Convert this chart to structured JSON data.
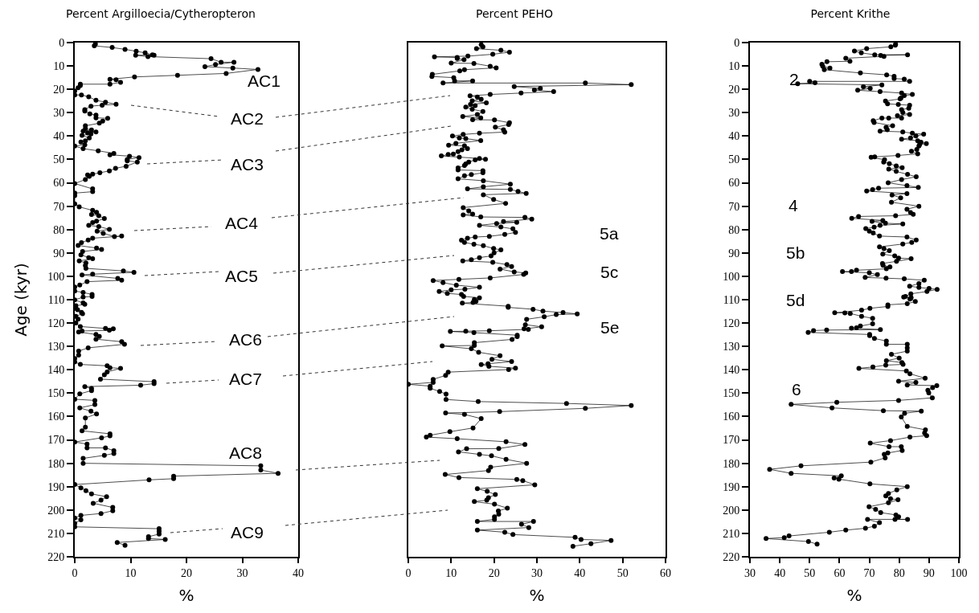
{
  "chart_data": [
    {
      "type": "line",
      "title": "Percent Argilloecia/Cytheropteron",
      "xlabel": "%",
      "ylabel": "Age (kyr)",
      "xlim": [
        0,
        40
      ],
      "xticks": [
        0,
        10,
        20,
        30,
        40
      ],
      "ylim": [
        220,
        0
      ],
      "yticks": [
        0,
        10,
        20,
        30,
        40,
        50,
        60,
        70,
        80,
        90,
        100,
        110,
        120,
        130,
        140,
        150,
        160,
        170,
        180,
        190,
        200,
        210,
        220
      ],
      "marker": "circle",
      "line_style": "solid",
      "series": [
        {
          "color": "#000000",
          "x": [
            3.7,
            3.5,
            6.7,
            9.0,
            11.0,
            12.6,
            13.9,
            14.2,
            10.9,
            13.1,
            24.4,
            26.2,
            28.5,
            25.2,
            23.3,
            28.3,
            32.8,
            27.1,
            18.4,
            10.7,
            6.3,
            7.4,
            8.2,
            6.3,
            1.0,
            1.0,
            0.6,
            0,
            0,
            1.2,
            2.5,
            3.8,
            5.5,
            7.4,
            4.9,
            2.9,
            1.8,
            1.8,
            2.7,
            3.8,
            3.8,
            5.9,
            5.0,
            4.4,
            1.9,
            1.9,
            3.0,
            1.5,
            3.8,
            2.3,
            2.9,
            1.3,
            2.6,
            1.9,
            1.1,
            1.8,
            0,
            1.5,
            4.2,
            7.0,
            6.3,
            9.8,
            11.5,
            9.4,
            9.4,
            11.2,
            9.2,
            7.3,
            6.2,
            4.5,
            3.2,
            2.3,
            2.6,
            1.9,
            0,
            3.2,
            3.2,
            0,
            0,
            0,
            0.8,
            3.2,
            3.9,
            3.0,
            4.3,
            5.3,
            3.9,
            3.2,
            2.5,
            4.3,
            6.2,
            4.0,
            5.1,
            7.1,
            8.4,
            3.2,
            2.4,
            1.2,
            0.6,
            3.9,
            4.8,
            1.4,
            1.1,
            2.5,
            3.2,
            0.8,
            2.0,
            1.9,
            2.0,
            8.7,
            10.6,
            3.2,
            1.3,
            7.7,
            8.4,
            2.2,
            0.9,
            0,
            0,
            1.5,
            3.1,
            3.1,
            1.5,
            0,
            1.5,
            1.8,
            0.2,
            0.2,
            0.5,
            1.2,
            1.4,
            0.2,
            0.6,
            0.2,
            1.0,
            5.5,
            6.9,
            6.2,
            1.3,
            0.7,
            3.8,
            4.4,
            3.8,
            8.4,
            8.9,
            2.4,
            0.7,
            0.7,
            0,
            0,
            1.0,
            5.8,
            6.3,
            8.2,
            5.8,
            5.3,
            4.6,
            14.2,
            14.2,
            11.8,
            1.8,
            3.0,
            3.0,
            0.9,
            0,
            3.6,
            3.6,
            0.9,
            2.9,
            3.9,
            1.9,
            1.9,
            1.3,
            6.3,
            6.3,
            4.8,
            0,
            2.2,
            2.2,
            5.5,
            7.0,
            7.0,
            5.3,
            1.5,
            1.5,
            33.3,
            33.3,
            36.4,
            17.7,
            17.7,
            13.3,
            0,
            1.1,
            2.0,
            3.0,
            5.7,
            4.7,
            3.3,
            6.8,
            6.8,
            4.7,
            1.1,
            0,
            1.1,
            0,
            0,
            15.1,
            15.1,
            15.1,
            13.2,
            13.2,
            16.2,
            7.6,
            9.0
          ],
          "values": [
            0.6,
            1.4,
            2.1,
            2.9,
            3.7,
            4.4,
            5.2,
            5.4,
            5.4,
            6.0,
            6.9,
            8.4,
            8.4,
            9.4,
            10.3,
            10.9,
            11.5,
            13.2,
            14.0,
            14.7,
            15.7,
            15.9,
            17.0,
            17.8,
            17.8,
            18.4,
            19.3,
            20.7,
            22.4,
            22.4,
            23.2,
            24.7,
            25.5,
            26.4,
            26.8,
            27.2,
            28.7,
            29.3,
            30.5,
            31.0,
            32.2,
            32.4,
            33.6,
            34.5,
            35.6,
            36.8,
            37.4,
            37.9,
            38.2,
            38.7,
            39.1,
            39.7,
            40.8,
            42.0,
            42.5,
            43.7,
            44.3,
            45.4,
            46.3,
            47.4,
            48.0,
            48.6,
            49.2,
            50.0,
            50.6,
            51.1,
            52.9,
            53.8,
            54.9,
            55.7,
            56.3,
            56.6,
            57.2,
            58.6,
            60.3,
            62.6,
            63.8,
            64.4,
            65.5,
            69.0,
            70.3,
            71.8,
            72.6,
            73.6,
            74.1,
            75.3,
            76.4,
            77.0,
            78.2,
            78.7,
            79.9,
            80.7,
            81.6,
            83.0,
            82.8,
            83.7,
            84.5,
            85.6,
            86.8,
            87.9,
            88.5,
            89.4,
            90.8,
            92.0,
            92.5,
            93.4,
            94.3,
            95.4,
            96.6,
            97.7,
            98.3,
            99.1,
            99.4,
            100.9,
            101.7,
            102.3,
            103.7,
            104.6,
            106.3,
            106.9,
            107.8,
            108.6,
            108.9,
            110.1,
            111.4,
            112.0,
            112.6,
            113.7,
            114.3,
            115.4,
            116.0,
            117.1,
            118.3,
            120.0,
            121.5,
            122.3,
            122.5,
            123.1,
            123.4,
            123.8,
            124.9,
            125.7,
            126.9,
            128.0,
            129.1,
            130.6,
            132.0,
            133.7,
            135.2,
            136.6,
            137.7,
            138.3,
            139.1,
            139.4,
            140.9,
            142.1,
            144.0,
            145.1,
            145.9,
            146.6,
            147.2,
            148.0,
            148.9,
            150.3,
            152.6,
            153.1,
            154.9,
            156.3,
            157.7,
            158.9,
            160.6,
            164.6,
            166.1,
            167.4,
            168.3,
            169.1,
            170.9,
            171.8,
            173.4,
            173.4,
            174.6,
            175.8,
            176.6,
            177.9,
            180.0,
            181.1,
            182.9,
            184.3,
            185.5,
            186.6,
            187.1,
            189.1,
            190.5,
            191.7,
            193.1,
            194.3,
            195.8,
            197.1,
            198.9,
            200.3,
            201.5,
            202.3,
            203.4,
            204.2,
            205.7,
            207.2,
            208.0,
            209.1,
            210.3,
            211.4,
            212.2,
            212.6,
            213.9,
            215.1
          ]
        }
      ],
      "annotations": [
        "AC1",
        "AC2",
        "AC3",
        "AC4",
        "AC5",
        "AC6",
        "AC7",
        "AC8",
        "AC9"
      ]
    },
    {
      "type": "line",
      "title": "Percent PEHO",
      "xlabel": "%",
      "xlim": [
        0,
        60
      ],
      "xticks": [
        0,
        10,
        20,
        30,
        40,
        50,
        60
      ],
      "ylim": [
        220,
        0
      ],
      "yticks": [
        0,
        10,
        20,
        30,
        40,
        50,
        60,
        70,
        80,
        90,
        100,
        110,
        120,
        130,
        140,
        150,
        160,
        170,
        180,
        190,
        200,
        210,
        220
      ],
      "tick_labels": "x",
      "marker": "circle",
      "line_style": "solid",
      "series": [
        {
          "color": "#000000",
          "x": [
            17.0,
            17.4,
            15.9,
            21.6,
            23.6,
            19.7,
            13.9,
            6.1,
            11.4,
            11.4,
            13.0,
            10.0,
            15.3,
            19.1,
            20.5,
            13.1,
            12.0,
            5.6,
            5.5,
            10.6,
            10.8,
            15.0,
            8.1,
            41.3,
            52,
            24.7,
            30.8,
            29.4,
            33.9,
            26.3,
            19.1,
            14.4,
            16.1,
            17.0,
            14.9,
            18.2,
            14.5,
            15.6,
            13.4,
            14.9,
            17.4,
            16.1,
            12.7,
            16.9,
            15.0,
            20.1,
            23.6,
            23.4,
            20.3,
            22.2,
            22.5,
            16.6,
            12.8,
            10.3,
            11.9,
            13.4,
            16.9,
            11.1,
            9.4,
            13.1,
            13.8,
            12.5,
            11.6,
            10.5,
            9.3,
            7.7,
            11.9,
            16.6,
            18.0,
            15.6,
            14.1,
            13.4,
            13.1,
            11.6,
            11.6,
            17.4,
            17.4,
            14.7,
            13.1,
            11.6,
            17.5,
            23.8,
            17.5,
            13.8,
            23.8,
            25.6,
            27.5,
            17.5,
            19.9,
            22.7,
            12.8,
            14.1,
            15.0,
            12.8,
            16.9,
            27.2,
            28.8,
            22.2,
            25.3,
            20.6,
            16.6,
            21.6,
            24.4,
            25.0,
            22.5,
            18.9,
            15.6,
            13.8,
            12.4,
            13.1,
            15.3,
            17.5,
            19.9,
            21.6,
            20.0,
            19.3,
            16.6,
            14.7,
            12.7,
            19.7,
            23.0,
            24.1,
            21.4,
            24.7,
            27.4,
            26.9,
            19.1,
            11.8,
            5.8,
            8.1,
            11.2,
            16.6,
            13.2,
            10.0,
            7.2,
            9.1,
            12.4,
            12.9,
            16.6,
            15.4,
            15.8,
            15.1,
            12.6,
            23.3,
            23.3,
            29.1,
            31.4,
            36.1,
            39.4,
            34.5,
            31.7,
            27.6,
            27.3,
            31.1,
            27.0,
            28.0,
            18.9,
            13.4,
            9.8,
            15.3,
            25.4,
            25.4,
            24.2,
            15.4,
            15.4,
            7.9,
            14.7,
            16.4,
            21.4,
            19.5,
            24.1,
            18.6,
            17.0,
            18.8,
            25.0,
            23.4,
            9.3,
            8.7,
            5.8,
            5.8,
            0,
            5.1,
            5.1,
            7.3,
            8.8,
            8.8,
            16.3,
            36.9,
            52,
            41.3,
            21.3,
            8.7,
            13.1,
            17.0,
            15.1,
            9.7,
            5.1,
            4.2,
            11.4,
            22.8,
            27.2,
            21.1,
            13.6,
            11.7,
            16.6,
            19.4,
            22.8,
            27.6,
            19.2,
            18.7,
            8.6,
            11.8,
            25.3,
            26.7,
            29.5,
            16.1,
            18.4,
            20.3,
            18.7,
            18.3,
            15.4,
            20.1,
            23.1,
            21.0,
            21.1,
            20.1,
            20.1,
            16.1,
            29.2,
            26.4,
            28.1,
            16.1,
            22.5,
            24.4,
            38.9,
            40.3,
            47.3,
            42.6,
            38.4
          ],
          "values": [
            0.9,
            1.8,
            2.6,
            3.3,
            4.1,
            5.0,
            5.8,
            6.1,
            6.4,
            6.8,
            7.3,
            8.8,
            8.9,
            10.1,
            10.8,
            11.6,
            12.1,
            13.6,
            14.5,
            15.0,
            16.4,
            16.4,
            17.3,
            17.3,
            18.0,
            18.8,
            19.6,
            20.3,
            21.0,
            21.6,
            22.2,
            22.8,
            23.3,
            24.2,
            24.9,
            25.8,
            26.5,
            27.0,
            27.6,
            28.5,
            29.5,
            30.8,
            31.6,
            32.2,
            33.0,
            33.1,
            34.3,
            35.1,
            36.2,
            37.3,
            38.3,
            38.8,
            39.3,
            40.0,
            40.8,
            41.1,
            41.9,
            43.1,
            43.9,
            44.2,
            45.4,
            45.9,
            46.7,
            47.7,
            47.9,
            48.5,
            49.0,
            49.6,
            49.9,
            50.2,
            51.1,
            51.9,
            52.6,
            53.6,
            54.5,
            54.8,
            55.7,
            56.5,
            57.0,
            58.3,
            59.1,
            60.6,
            61.7,
            62.6,
            62.8,
            63.7,
            64.5,
            65.1,
            67.1,
            68.8,
            70.6,
            72.0,
            73.4,
            73.7,
            74.6,
            74.8,
            75.5,
            76.6,
            76.9,
            77.4,
            78.2,
            78.9,
            79.7,
            81.2,
            82.1,
            82.9,
            83.2,
            83.7,
            84.6,
            85.5,
            86.3,
            86.9,
            88.1,
            88.7,
            90.0,
            91.3,
            92.0,
            92.9,
            93.4,
            94.0,
            95.0,
            95.8,
            96.9,
            98.1,
            98.6,
            99.2,
            100.7,
            101.3,
            101.8,
            102.7,
            103.8,
            104.7,
            105.5,
            105.8,
            106.5,
            107.3,
            107.8,
            108.6,
            109.2,
            109.9,
            110.7,
            111.2,
            111.5,
            112.8,
            113.3,
            114.1,
            114.9,
            115.5,
            116.1,
            116.4,
            117.3,
            118.4,
            120.7,
            121.6,
            122.5,
            122.7,
            123.3,
            123.5,
            123.6,
            124.1,
            125.2,
            125.8,
            127.0,
            128.4,
            129.6,
            129.8,
            131.0,
            132.5,
            134.0,
            135.5,
            136.5,
            137.4,
            137.8,
            138.5,
            139.3,
            139.9,
            141.0,
            142.4,
            144.1,
            145.4,
            146.2,
            147.0,
            147.9,
            149.3,
            150.4,
            152.7,
            153.6,
            154.4,
            155.3,
            156.5,
            157.9,
            158.5,
            159.1,
            160.9,
            164.9,
            166.5,
            168.0,
            168.8,
            169.5,
            170.8,
            172.0,
            173.7,
            173.8,
            175.1,
            176.2,
            176.8,
            178.3,
            180.0,
            181.7,
            183.1,
            184.8,
            186.1,
            186.9,
            187.4,
            189.2,
            190.9,
            192.0,
            193.4,
            194.7,
            195.8,
            196.4,
            197.5,
            199.2,
            200.4,
            201.8,
            202.9,
            204.0,
            204.9,
            204.9,
            206.1,
            207.5,
            208.6,
            209.5,
            210.5,
            211.7,
            212.6,
            213.0,
            214.4,
            215.5
          ]
        }
      ],
      "annotations": [
        "5a",
        "5c",
        "5e"
      ]
    },
    {
      "type": "line",
      "title": "Percent Krithe",
      "xlabel": "%",
      "xlim": [
        30,
        100
      ],
      "xticks": [
        30,
        40,
        50,
        60,
        70,
        80,
        90,
        100
      ],
      "ylim": [
        220,
        0
      ],
      "yticks": [
        0,
        10,
        20,
        30,
        40,
        50,
        60,
        70,
        80,
        90,
        100,
        110,
        120,
        130,
        140,
        150,
        160,
        170,
        180,
        190,
        200,
        210,
        220
      ],
      "marker": "circle",
      "line_style": "solid",
      "series": [
        {
          "color": "#000000",
          "x": [
            78.8,
            78.7,
            77.2,
            69.1,
            65.0,
            67.3,
            71.8,
            82.8,
            73.8,
            74.9,
            62.1,
            63.5,
            55.8,
            54.1,
            54.4,
            56.8,
            54.9,
            67.0,
            75.8,
            78.3,
            78.3,
            81.7,
            83.5,
            50.0,
            51.8,
            46.0,
            74.2,
            68.0,
            70.3,
            66.1,
            73.6,
            80.8,
            84.4,
            81.7,
            80.6,
            80.3,
            75.4,
            76.1,
            79.7,
            83.5,
            83.2,
            80.8,
            81.2,
            83.5,
            79.4,
            80.8,
            76.5,
            74.2,
            71.3,
            71.6,
            77.8,
            75.6,
            76.0,
            73.6,
            81.2,
            84.4,
            88.2,
            85.6,
            83.8,
            80.8,
            86.2,
            87.3,
            89.1,
            86.8,
            86.6,
            85.9,
            84.1,
            86.2,
            79.6,
            71.8,
            70.6,
            75.1,
            74.8,
            76.7,
            79.0,
            81.0,
            76.5,
            79.0,
            82.8,
            85.7,
            80.8,
            76.3,
            82.6,
            86.4,
            73.1,
            71.1,
            69.1,
            82.6,
            77.6,
            80.5,
            77.4,
            86.6,
            82.6,
            83.8,
            84.7,
            78.8,
            66.4,
            64.1,
            74.5,
            70.9,
            75.4,
            81.2,
            73.6,
            71.6,
            68.8,
            70.0,
            71.3,
            73.4,
            82.6,
            85.7,
            84.2,
            81.2,
            73.4,
            74.9,
            76.7,
            74.5,
            78.5,
            79.8,
            84.0,
            79.1,
            74.4,
            74.6,
            76.9,
            75.7,
            65.7,
            64.0,
            61.0,
            70.0,
            72.7,
            68.6,
            75.6,
            81.7,
            88.4,
            86.6,
            83.5,
            86.6,
            90.0,
            92.7,
            89.3,
            83.9,
            82.1,
            81.5,
            84.0,
            83.6,
            85.4,
            82.7,
            76.2,
            76.2,
            70.2,
            67.4,
            58.4,
            61.8,
            63.6,
            67.4,
            71.1,
            71.1,
            67.0,
            65.7,
            64.0,
            73.7,
            55.7,
            51.3,
            49.5,
            70.1,
            70.1,
            71.7,
            75.7,
            75.7,
            82.7,
            82.7,
            82.7,
            77.4,
            80.0,
            75.7,
            80.9,
            81.3,
            75.5,
            71.2,
            66.5,
            82.4,
            83.6,
            88.7,
            79.8,
            85.6,
            82.7,
            92.6,
            91.2,
            89.6,
            89.9,
            91.1,
            79.8,
            59.1,
            43.8,
            57.5,
            74.7,
            87.4,
            81.8,
            80.7,
            82.7,
            88.8,
            88.5,
            89.2,
            83.6,
            77.1,
            70.3,
            76.6,
            80.7,
            81.0,
            76.2,
            75.0,
            75.3,
            70.5,
            47.1,
            36.6,
            43.8,
            60.6,
            58.2,
            59.8,
            70.2,
            82.7,
            79.2,
            76.4,
            75.5,
            77.1,
            79.6,
            76.4,
            69.9,
            72.1,
            73.8,
            78.9,
            79.8,
            78.6,
            82.8,
            69.4,
            73.4,
            71.7,
            68.7,
            62.1,
            56.6,
            43.1,
            41.5,
            35.4,
            49.6,
            52.5
          ],
          "values": [
            0.7,
            1.1,
            1.8,
            2.6,
            3.6,
            4.4,
            5.2,
            5.2,
            5.5,
            5.9,
            6.7,
            8.0,
            8.2,
            9.3,
            10.1,
            10.9,
            11.6,
            13.0,
            13.8,
            14.4,
            15.4,
            15.6,
            16.6,
            16.6,
            17.2,
            17.6,
            18.1,
            18.9,
            19.6,
            20.4,
            21.0,
            21.6,
            22.2,
            22.7,
            23.7,
            24.1,
            25.0,
            26.2,
            26.5,
            26.8,
            28.1,
            28.7,
            29.9,
            30.8,
            31.3,
            32.3,
            32.3,
            32.3,
            33.4,
            34.2,
            35.6,
            36.3,
            37.3,
            37.9,
            38.2,
            38.8,
            39.2,
            40.0,
            40.8,
            41.3,
            42.0,
            42.6,
            43.2,
            43.7,
            44.3,
            45.7,
            46.5,
            47.6,
            48.3,
            48.9,
            49.1,
            50.1,
            51.1,
            51.8,
            52.8,
            53.5,
            54.1,
            55.1,
            56.4,
            57.4,
            58.6,
            60.0,
            61.2,
            62.0,
            62.3,
            62.9,
            63.5,
            64.6,
            65.2,
            66.4,
            68.3,
            70.0,
            71.3,
            72.7,
            73.5,
            74.1,
            74.4,
            75.2,
            76.1,
            76.5,
            77.3,
            77.6,
            78.2,
            79.0,
            79.6,
            80.7,
            81.5,
            82.8,
            83.2,
            84.5,
            85.5,
            86.2,
            87.4,
            88.2,
            89.0,
            90.5,
            91.3,
            92.2,
            92.5,
            93.6,
            94.5,
            95.3,
            96.0,
            96.8,
            97.4,
            98.0,
            98.0,
            98.5,
            99.3,
            100.5,
            100.8,
            101.1,
            101.7,
            103.1,
            104.2,
            104.8,
            105.2,
            105.6,
            106.5,
            107.5,
            108.6,
            108.9,
            109.1,
            109.7,
            110.8,
            111.7,
            112.2,
            112.9,
            113.7,
            114.5,
            115.6,
            115.7,
            115.9,
            117.1,
            118.0,
            120.3,
            121.3,
            122.0,
            122.2,
            122.8,
            123.0,
            123.2,
            124.0,
            124.9,
            125.4,
            126.6,
            127.7,
            129.1,
            129.1,
            130.6,
            132.0,
            133.4,
            135.0,
            136.1,
            136.9,
            137.7,
            138.0,
            138.8,
            139.4,
            140.5,
            141.7,
            143.6,
            144.9,
            145.4,
            146.5,
            146.8,
            147.6,
            148.8,
            149.9,
            152.0,
            153.1,
            153.9,
            154.8,
            156.3,
            157.5,
            157.7,
            158.6,
            160.2,
            164.2,
            165.7,
            167.1,
            168.2,
            168.8,
            170.3,
            171.4,
            172.9,
            172.9,
            174.5,
            175.6,
            176.2,
            177.7,
            179.5,
            181.1,
            182.6,
            184.3,
            185.4,
            186.3,
            186.8,
            188.8,
            190.0,
            191.4,
            192.9,
            194.0,
            195.2,
            195.6,
            196.9,
            198.6,
            199.7,
            201.1,
            202.1,
            202.9,
            204.0,
            204.0,
            204.0,
            205.4,
            206.9,
            207.8,
            208.6,
            209.5,
            211.1,
            211.8,
            212.2,
            213.5,
            214.6
          ]
        }
      ],
      "annotations": [
        "2",
        "4",
        "5b",
        "5d",
        "6"
      ]
    }
  ]
}
